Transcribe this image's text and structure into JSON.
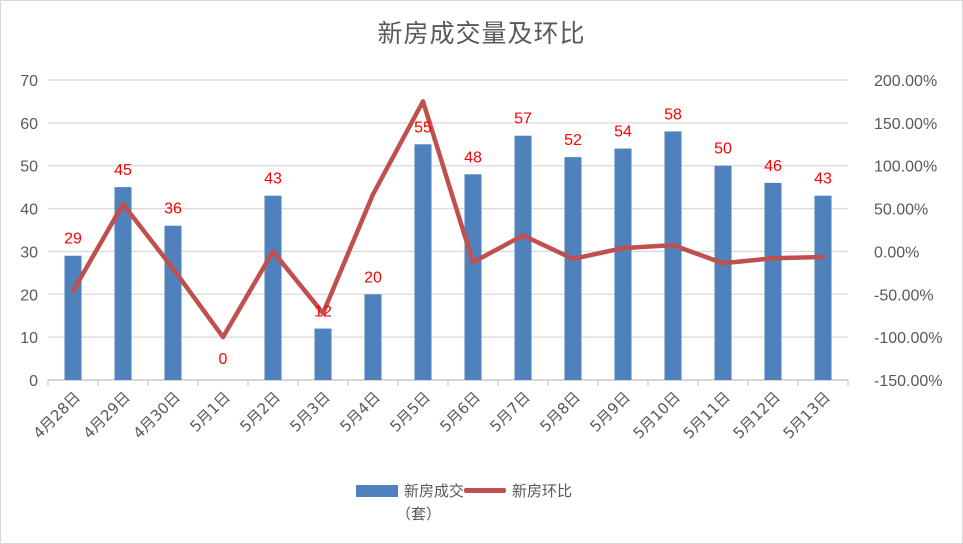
{
  "chart_data": {
    "type": "bar+line",
    "title": "新房成交量及环比",
    "categories": [
      "4月28日",
      "4月29日",
      "4月30日",
      "5月1日",
      "5月2日",
      "5月3日",
      "5月4日",
      "5月5日",
      "5月6日",
      "5月7日",
      "5月8日",
      "5月9日",
      "5月10日",
      "5月11日",
      "5月12日",
      "5月13日"
    ],
    "series": [
      {
        "name": "新房成交（套）",
        "type": "bar",
        "axis": "left",
        "color": "#4f81bd",
        "values": [
          29,
          45,
          36,
          0,
          43,
          12,
          20,
          55,
          48,
          57,
          52,
          54,
          58,
          50,
          46,
          43
        ]
      },
      {
        "name": "新房环比",
        "type": "line",
        "axis": "right",
        "color": "#c0504d",
        "unit": "%",
        "values": [
          -46.3,
          55.17,
          -20.0,
          -100.0,
          0.0,
          -72.09,
          66.67,
          175.0,
          -12.73,
          18.75,
          -8.77,
          3.85,
          7.41,
          -13.79,
          -8.0,
          -6.52
        ]
      }
    ],
    "data_labels": [
      "29",
      "45",
      "36",
      "0",
      "43",
      "12",
      "20",
      "55",
      "48",
      "57",
      "52",
      "54",
      "58",
      "50",
      "46",
      "43"
    ],
    "data_label_color": "#ff0000",
    "left_axis": {
      "ylim": [
        0,
        70
      ],
      "ticks": [
        "0",
        "10",
        "20",
        "30",
        "40",
        "50",
        "60",
        "70"
      ]
    },
    "right_axis": {
      "ylim": [
        -150,
        200
      ],
      "ticks": [
        "-150.00%",
        "-100.00%",
        "-50.00%",
        "0.00%",
        "50.00%",
        "100.00%",
        "150.00%",
        "200.00%"
      ]
    },
    "grid": true,
    "legend_position": "bottom",
    "xlabel": "",
    "ylabel": ""
  },
  "legend": {
    "bar_label_line1": "新房成交",
    "bar_label_line2": "（套）",
    "line_label": "新房环比"
  }
}
